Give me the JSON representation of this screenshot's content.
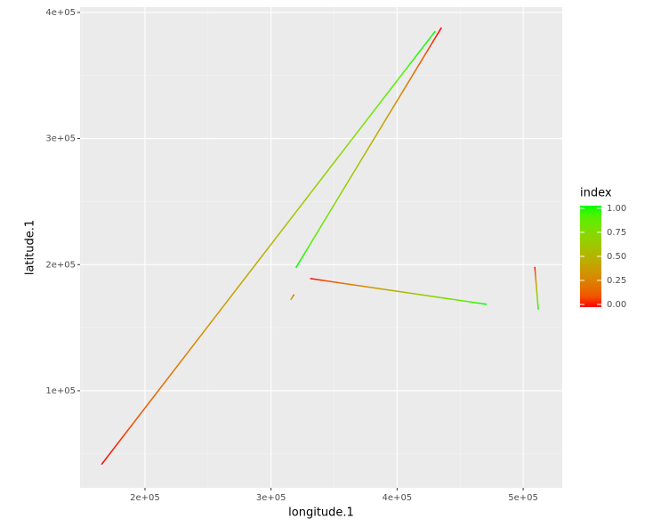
{
  "chart_data": {
    "type": "segments",
    "x_label": "longitude.1",
    "y_label": "latitude.1",
    "xlim": [
      148500,
      531000
    ],
    "ylim": [
      23000,
      404200
    ],
    "xticks": [
      {
        "value": 200000,
        "label": "2e+05"
      },
      {
        "value": 300000,
        "label": "3e+05"
      },
      {
        "value": 400000,
        "label": "4e+05"
      },
      {
        "value": 500000,
        "label": "5e+05"
      }
    ],
    "yticks": [
      {
        "value": 100000,
        "label": "1e+05"
      },
      {
        "value": 200000,
        "label": "2e+05"
      },
      {
        "value": 300000,
        "label": "3e+05"
      },
      {
        "value": 400000,
        "label": "4e+05"
      }
    ],
    "grid": true,
    "color_low": "#ff0000",
    "color_high": "#00ff00",
    "series": [
      {
        "x": [
          165500,
          430300
        ],
        "y": [
          41500,
          385200
        ],
        "index": [
          0,
          1
        ]
      },
      {
        "x": [
          435200,
          319700
        ],
        "y": [
          388000,
          197500
        ],
        "index": [
          0,
          1
        ]
      },
      {
        "x": [
          318300,
          315500
        ],
        "y": [
          176300,
          172000
        ],
        "index": [
          0.1,
          0.6
        ]
      },
      {
        "x": [
          331000,
          471100
        ],
        "y": [
          189000,
          168500
        ],
        "index": [
          0,
          1
        ]
      },
      {
        "x": [
          509200,
          512000
        ],
        "y": [
          198200,
          164300
        ],
        "index": [
          0,
          1
        ]
      }
    ],
    "legend": {
      "title": "index",
      "range": [
        0,
        1
      ],
      "ticks": [
        {
          "value": 0,
          "label": "0.00"
        },
        {
          "value": 0.25,
          "label": "0.25"
        },
        {
          "value": 0.5,
          "label": "0.50"
        },
        {
          "value": 0.75,
          "label": "0.75"
        },
        {
          "value": 1,
          "label": "1.00"
        }
      ]
    }
  }
}
